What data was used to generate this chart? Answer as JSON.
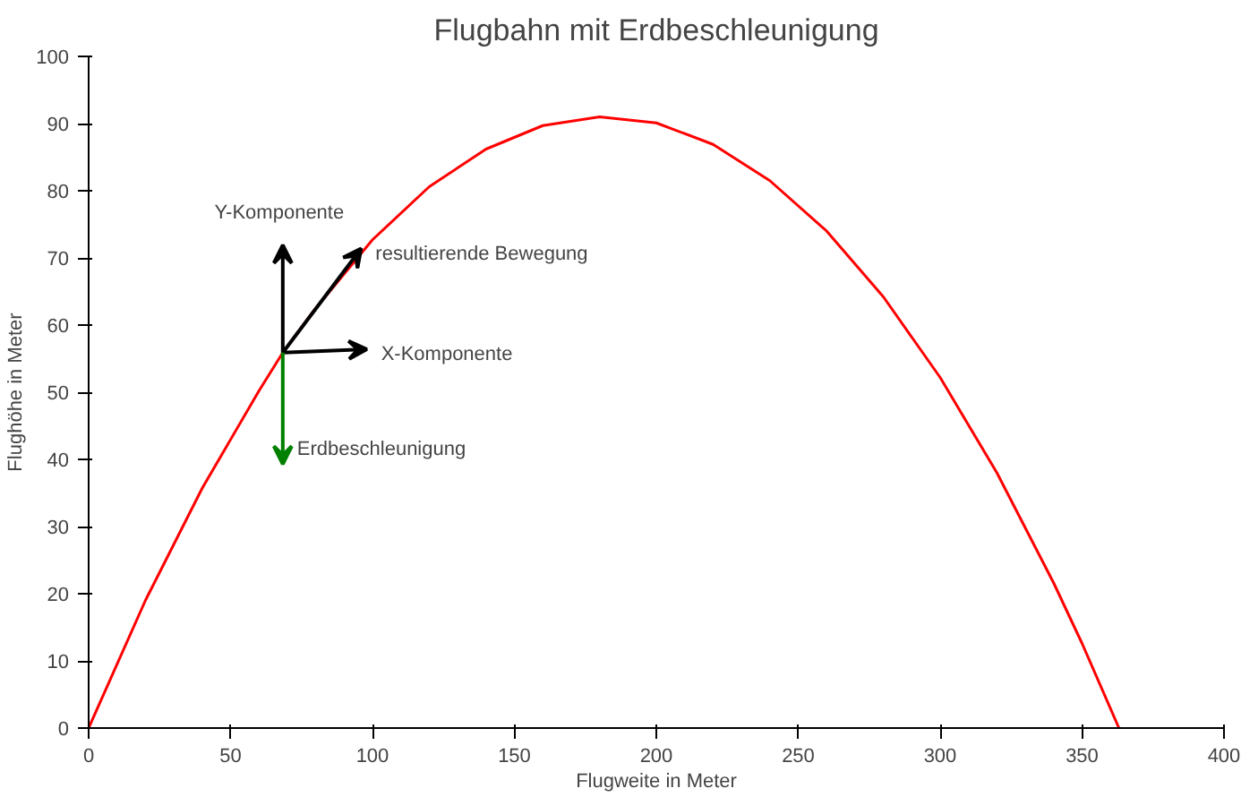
{
  "chart_data": {
    "type": "line",
    "title": "Flugbahn mit Erdbeschleunigung",
    "xlabel": "Flugweite in Meter",
    "ylabel": "Flughöhe in Meter",
    "xlim": [
      0,
      400
    ],
    "ylim": [
      0,
      100
    ],
    "xticks": [
      0,
      50,
      100,
      150,
      200,
      250,
      300,
      350,
      400
    ],
    "yticks": [
      0,
      10,
      20,
      30,
      40,
      50,
      60,
      70,
      80,
      90,
      100
    ],
    "grid": false,
    "marker": "none",
    "line_style": "solid",
    "series": [
      {
        "color": "#ff0000",
        "x": [
          0,
          20,
          40,
          60,
          68.4,
          80,
          100,
          120,
          140,
          160,
          180,
          200,
          220,
          240,
          260,
          280,
          300,
          320,
          340,
          350,
          363
        ],
        "values": [
          0,
          19,
          35.7,
          50.2,
          55.9,
          62.5,
          72.7,
          80.6,
          86.2,
          89.7,
          91,
          90.1,
          86.9,
          81.5,
          74,
          64.2,
          52.2,
          38,
          21.6,
          12.6,
          0
        ]
      }
    ],
    "annotations": [
      "Y-Komponente",
      "resultierende Bewegung",
      "X-Komponente",
      "Erdbeschleunigung"
    ]
  }
}
